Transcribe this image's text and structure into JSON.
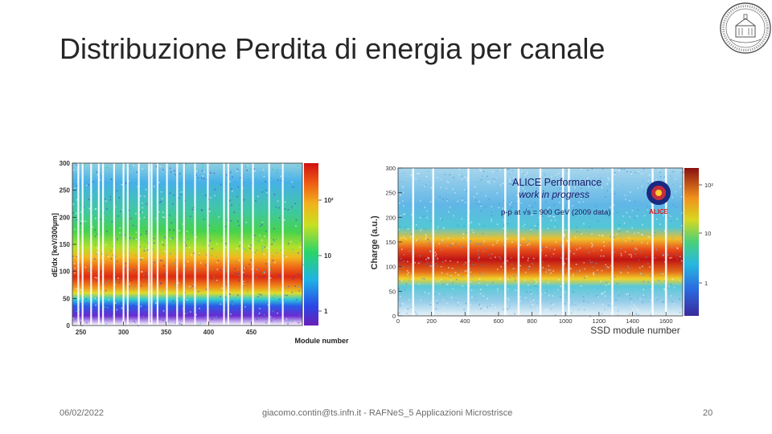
{
  "slide": {
    "title": "Distribuzione Perdita di energia per canale",
    "footer_date": "06/02/2022",
    "footer_center": "giacomo.contin@ts.infn.it - RAFNeS_5 Applicazioni Microstrisce",
    "page_number": "20"
  },
  "logo": {
    "icon": "university-seal-icon"
  },
  "chart_data": [
    {
      "type": "heatmap",
      "xlabel": "Module number",
      "ylabel": "dE/dx [keV/300µm]",
      "xlim": [
        240,
        510
      ],
      "ylim": [
        0,
        300
      ],
      "x_ticks": [
        "250",
        "300",
        "350",
        "400",
        "450"
      ],
      "x_tick_values": [
        250,
        300,
        350,
        400,
        450
      ],
      "y_ticks": [
        "0",
        "50",
        "100",
        "150",
        "200",
        "250",
        "300"
      ],
      "y_tick_values": [
        0,
        50,
        100,
        150,
        200,
        250,
        300
      ],
      "colorbar_ticks": [
        "1",
        "10",
        "10²"
      ],
      "colorbar_scale": "log",
      "peak_y": 90,
      "empty_columns": [
        247,
        252,
        262,
        271,
        276,
        289,
        300,
        305,
        318,
        330,
        333,
        340,
        351,
        363,
        371,
        384,
        399,
        418,
        423,
        439,
        452,
        471,
        487
      ]
    },
    {
      "type": "heatmap",
      "xlabel": "SSD module number",
      "ylabel": "Charge (a.u.)",
      "xlim": [
        0,
        1700
      ],
      "ylim": [
        0,
        300
      ],
      "x_ticks": [
        "0",
        "200",
        "400",
        "600",
        "800",
        "1000",
        "1200",
        "1400",
        "1600"
      ],
      "x_tick_values": [
        0,
        200,
        400,
        600,
        800,
        1000,
        1200,
        1400,
        1600
      ],
      "y_ticks": [
        "0",
        "50",
        "100",
        "150",
        "200",
        "250",
        "300"
      ],
      "y_tick_values": [
        0,
        50,
        100,
        150,
        200,
        250,
        300
      ],
      "colorbar_ticks": [
        "1",
        "10",
        "10²"
      ],
      "colorbar_scale": "log",
      "peak_y": 100,
      "empty_columns": [
        90,
        210,
        420,
        640,
        720,
        850,
        985,
        1020,
        1280,
        1520,
        1600
      ],
      "annotation_title": "ALICE Performance",
      "annotation_subtitle": "work in progress",
      "annotation_conditions": "p-p at √s = 900 GeV (2009 data)",
      "badge_text": "ALICE"
    }
  ]
}
